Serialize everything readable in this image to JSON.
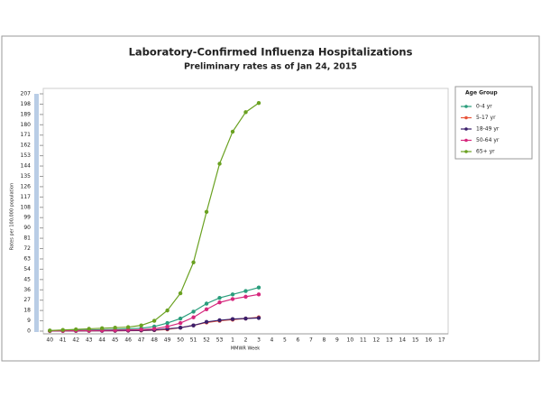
{
  "chart_data": {
    "type": "line",
    "title": "Laboratory-Confirmed Influenza Hospitalizations",
    "subtitle": "Preliminary rates as of Jan 24, 2015",
    "x_label": "MMWR Week",
    "y_label": "Rates per 100,000 population",
    "legend_title": "Age Group",
    "legend": "right",
    "categories": [
      "40",
      "41",
      "42",
      "43",
      "44",
      "45",
      "46",
      "47",
      "48",
      "49",
      "50",
      "51",
      "52",
      "53",
      "1",
      "2",
      "3",
      "4",
      "5",
      "6",
      "7",
      "8",
      "9",
      "10",
      "11",
      "12",
      "13",
      "14",
      "15",
      "16",
      "17"
    ],
    "ylim": [
      0,
      207
    ],
    "yticks": [
      0,
      9,
      18,
      27,
      36,
      45,
      54,
      63,
      72,
      81,
      90,
      99,
      108,
      117,
      126,
      135,
      144,
      153,
      162,
      171,
      180,
      189,
      198,
      207
    ],
    "series": [
      {
        "name": "0-4 yr",
        "color": "#2a9d7c",
        "values": [
          0.3,
          0.5,
          0.7,
          1,
          1.2,
          1.5,
          2,
          2.5,
          4,
          7,
          11,
          17,
          24,
          29,
          32,
          35,
          38,
          null,
          null,
          null,
          null,
          null,
          null,
          null,
          null,
          null,
          null,
          null,
          null,
          null,
          null
        ]
      },
      {
        "name": "5-17 yr",
        "color": "#e8543a",
        "values": [
          0.1,
          0.1,
          0.2,
          0.2,
          0.3,
          0.3,
          0.4,
          0.5,
          0.8,
          1.5,
          3,
          5,
          7.5,
          9,
          10,
          11,
          12,
          null,
          null,
          null,
          null,
          null,
          null,
          null,
          null,
          null,
          null,
          null,
          null,
          null,
          null
        ]
      },
      {
        "name": "18-49 yr",
        "color": "#3b1f6b",
        "values": [
          0.1,
          0.2,
          0.2,
          0.3,
          0.3,
          0.4,
          0.5,
          0.7,
          1,
          2,
          3,
          5,
          8,
          9.5,
          10.5,
          11,
          11.5,
          null,
          null,
          null,
          null,
          null,
          null,
          null,
          null,
          null,
          null,
          null,
          null,
          null,
          null
        ]
      },
      {
        "name": "50-64 yr",
        "color": "#d6287d",
        "values": [
          0.2,
          0.3,
          0.4,
          0.5,
          0.6,
          0.8,
          1,
          1.3,
          2,
          4,
          7,
          12,
          19,
          25,
          28,
          30,
          32,
          null,
          null,
          null,
          null,
          null,
          null,
          null,
          null,
          null,
          null,
          null,
          null,
          null,
          null
        ]
      },
      {
        "name": "65+ yr",
        "color": "#6aa121",
        "values": [
          0.5,
          1,
          1.5,
          2,
          2.5,
          3,
          3.5,
          5,
          9,
          18,
          33,
          60,
          104,
          146,
          174,
          191,
          199,
          null,
          null,
          null,
          null,
          null,
          null,
          null,
          null,
          null,
          null,
          null,
          null,
          null,
          null
        ]
      }
    ]
  }
}
